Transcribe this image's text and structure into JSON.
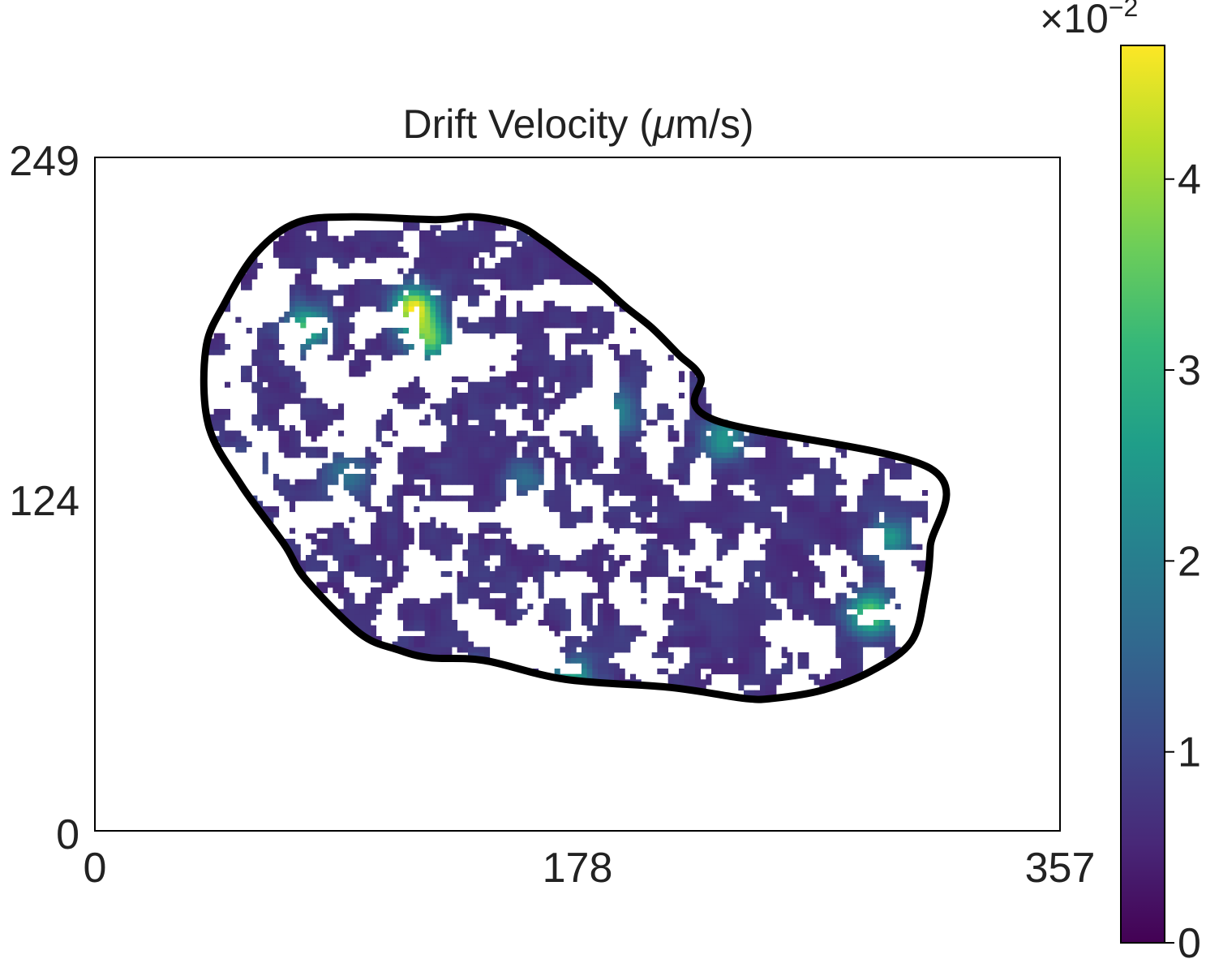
{
  "chart_data": {
    "type": "heatmap",
    "title": "Drift Velocity (μm/s)",
    "title_parts": {
      "before": "Drift Velocity (",
      "mu": "μ",
      "after": "m/s)"
    },
    "xlabel": "",
    "ylabel": "",
    "xlim": [
      0,
      357
    ],
    "ylim": [
      0,
      249
    ],
    "x_ticks": [
      "0",
      "178",
      "357"
    ],
    "y_ticks": [
      "0",
      "124",
      "249"
    ],
    "grid": false,
    "colorbar": {
      "colormap": "viridis",
      "range": [
        0,
        0.047
      ],
      "ticks": [
        "0",
        "1",
        "2",
        "3",
        "4"
      ],
      "tick_values": [
        0,
        1,
        2,
        3,
        4
      ],
      "exponent_label": {
        "base": "×10",
        "exponent": "−2"
      },
      "stops": [
        "#440154",
        "#482878",
        "#3e4989",
        "#31688e",
        "#26828e",
        "#1f9e89",
        "#35b779",
        "#6ece58",
        "#b5de2b",
        "#fde725"
      ]
    },
    "field_description": "patchy velocity magnitudes inside a cell boundary, white where undefined",
    "boundary": {
      "color": "#000000",
      "points": [
        [
          126,
          226
        ],
        [
          140,
          227
        ],
        [
          156,
          224
        ],
        [
          166,
          218
        ],
        [
          174,
          212
        ],
        [
          186,
          203
        ],
        [
          196,
          194
        ],
        [
          206,
          186
        ],
        [
          216,
          176
        ],
        [
          224,
          168
        ],
        [
          229,
          152
        ],
        [
          309,
          134
        ],
        [
          309,
          105
        ],
        [
          307,
          88
        ],
        [
          302,
          70
        ],
        [
          287,
          59
        ],
        [
          269,
          52
        ],
        [
          251,
          49
        ],
        [
          240,
          49
        ],
        [
          213,
          53
        ],
        [
          174,
          56
        ],
        [
          144,
          63
        ],
        [
          124,
          64
        ],
        [
          112,
          67
        ],
        [
          98,
          73
        ],
        [
          78,
          93
        ],
        [
          70,
          106
        ],
        [
          54,
          128
        ],
        [
          42,
          150
        ],
        [
          41,
          178
        ],
        [
          48,
          195
        ],
        [
          60,
          214
        ],
        [
          75,
          225
        ],
        [
          95,
          227
        ]
      ],
      "smooth_note": "outline traced through data coordinates (x, y)"
    },
    "hotspots": [
      {
        "x": 118,
        "y": 193,
        "value": 0.046
      },
      {
        "x": 124,
        "y": 182,
        "value": 0.034
      },
      {
        "x": 78,
        "y": 186,
        "value": 0.032
      },
      {
        "x": 287,
        "y": 80,
        "value": 0.038
      },
      {
        "x": 177,
        "y": 56,
        "value": 0.027
      },
      {
        "x": 233,
        "y": 145,
        "value": 0.026
      },
      {
        "x": 54,
        "y": 133,
        "value": 0.022
      },
      {
        "x": 294,
        "y": 108,
        "value": 0.024
      },
      {
        "x": 141,
        "y": 54,
        "value": 0.022
      },
      {
        "x": 193,
        "y": 155,
        "value": 0.022
      },
      {
        "x": 93,
        "y": 131,
        "value": 0.018
      },
      {
        "x": 159,
        "y": 130,
        "value": 0.016
      }
    ],
    "base_level": 0.007,
    "coverage": 0.5
  }
}
